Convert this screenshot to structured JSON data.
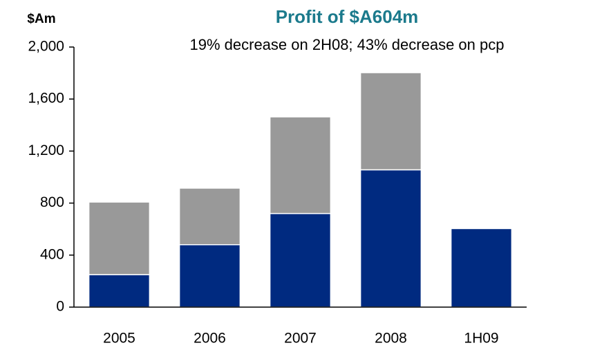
{
  "chart_data": {
    "type": "bar",
    "stacked": true,
    "title": "Profit of $A604m",
    "subtitle": "19% decrease on 2H08; 43% decrease on pcp",
    "y_label": "$Am",
    "categories": [
      "2005",
      "2006",
      "2007",
      "2008",
      "1H09"
    ],
    "series": [
      {
        "color": "#002a80",
        "values": [
          250,
          480,
          720,
          1056,
          604
        ]
      },
      {
        "color": "#999999",
        "values": [
          558,
          435,
          743,
          747,
          null
        ]
      }
    ],
    "ylim": [
      0,
      2000
    ],
    "yticks": [
      0,
      400,
      800,
      {
        "value": 1200,
        "label": "1,200"
      },
      {
        "value": 1600,
        "label": "1,600"
      },
      {
        "value": 2000,
        "label": "2,000"
      }
    ]
  }
}
